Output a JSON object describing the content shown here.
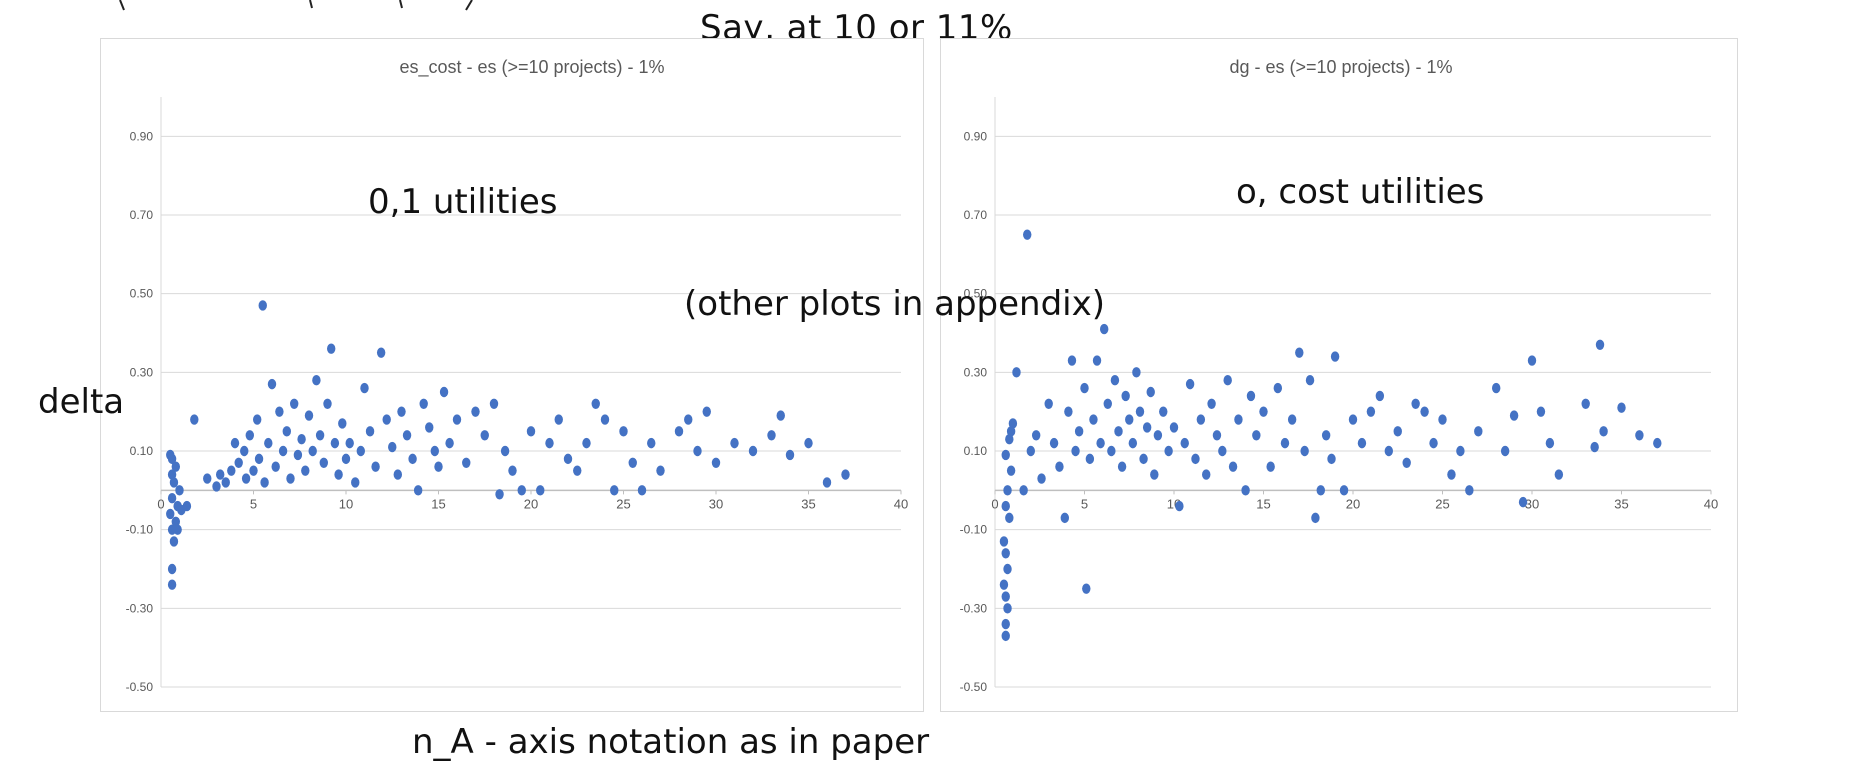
{
  "header_note": "Say, at 10 or 11%",
  "annotations": {
    "left_note": "0,1 utilities",
    "right_note": "o, cost utilities",
    "middle_note": "(other plots in appendix)",
    "y_note": "delta",
    "x_note": "n_A - axis notation as in paper"
  },
  "colors": {
    "marker": "#4472C4",
    "grid": "#d9d9d9",
    "axis_text": "#595959",
    "title_text": "#595959"
  },
  "chart_data": [
    {
      "type": "scatter",
      "title": "es_cost - es (>=10 projects) - 1%",
      "xlabel": "",
      "ylabel": "",
      "xlim": [
        0,
        40
      ],
      "ylim": [
        -0.5,
        1.0
      ],
      "x_ticks": [
        0,
        5,
        10,
        15,
        20,
        25,
        30,
        35,
        40
      ],
      "x_tick_labels": [
        "0",
        "5",
        "10",
        "15",
        "20",
        "25",
        "30",
        "35",
        "40"
      ],
      "y_ticks": [
        0.9,
        0.7,
        0.5,
        0.3,
        0.1,
        -0.1,
        -0.3,
        -0.5
      ],
      "y_tick_labels": [
        "0.90",
        "0.70",
        "0.50",
        "0.30",
        "0.10",
        "-0.10",
        "-0.30",
        "-0.50"
      ],
      "grid": "horizontal",
      "series": [
        {
          "color": "#4472C4",
          "points": [
            [
              0.6,
              -0.24
            ],
            [
              0.6,
              -0.2
            ],
            [
              0.7,
              -0.13
            ],
            [
              0.6,
              -0.1
            ],
            [
              0.8,
              -0.08
            ],
            [
              0.5,
              -0.06
            ],
            [
              0.9,
              -0.04
            ],
            [
              0.6,
              -0.02
            ],
            [
              1.0,
              0.0
            ],
            [
              0.7,
              0.02
            ],
            [
              0.6,
              0.04
            ],
            [
              0.8,
              0.06
            ],
            [
              0.6,
              0.08
            ],
            [
              0.9,
              -0.1
            ],
            [
              1.1,
              -0.05
            ],
            [
              0.5,
              0.09
            ],
            [
              1.4,
              -0.04
            ],
            [
              1.8,
              0.18
            ],
            [
              2.5,
              0.03
            ],
            [
              3.0,
              0.01
            ],
            [
              3.2,
              0.04
            ],
            [
              3.5,
              0.02
            ],
            [
              3.8,
              0.05
            ],
            [
              4.0,
              0.12
            ],
            [
              4.2,
              0.07
            ],
            [
              4.5,
              0.1
            ],
            [
              4.6,
              0.03
            ],
            [
              4.8,
              0.14
            ],
            [
              5.0,
              0.05
            ],
            [
              5.2,
              0.18
            ],
            [
              5.3,
              0.08
            ],
            [
              5.5,
              0.47
            ],
            [
              5.6,
              0.02
            ],
            [
              5.8,
              0.12
            ],
            [
              6.0,
              0.27
            ],
            [
              6.2,
              0.06
            ],
            [
              6.4,
              0.2
            ],
            [
              6.6,
              0.1
            ],
            [
              6.8,
              0.15
            ],
            [
              7.0,
              0.03
            ],
            [
              7.2,
              0.22
            ],
            [
              7.4,
              0.09
            ],
            [
              7.6,
              0.13
            ],
            [
              7.8,
              0.05
            ],
            [
              8.0,
              0.19
            ],
            [
              8.2,
              0.1
            ],
            [
              8.4,
              0.28
            ],
            [
              8.6,
              0.14
            ],
            [
              8.8,
              0.07
            ],
            [
              9.0,
              0.22
            ],
            [
              9.2,
              0.36
            ],
            [
              9.4,
              0.12
            ],
            [
              9.6,
              0.04
            ],
            [
              9.8,
              0.17
            ],
            [
              10.0,
              0.08
            ],
            [
              10.2,
              0.12
            ],
            [
              10.5,
              0.02
            ],
            [
              10.8,
              0.1
            ],
            [
              11.0,
              0.26
            ],
            [
              11.3,
              0.15
            ],
            [
              11.6,
              0.06
            ],
            [
              11.9,
              0.35
            ],
            [
              12.2,
              0.18
            ],
            [
              12.5,
              0.11
            ],
            [
              12.8,
              0.04
            ],
            [
              13.0,
              0.2
            ],
            [
              13.3,
              0.14
            ],
            [
              13.6,
              0.08
            ],
            [
              13.9,
              0.0
            ],
            [
              14.2,
              0.22
            ],
            [
              14.5,
              0.16
            ],
            [
              14.8,
              0.1
            ],
            [
              15.0,
              0.06
            ],
            [
              15.3,
              0.25
            ],
            [
              15.6,
              0.12
            ],
            [
              16.0,
              0.18
            ],
            [
              16.5,
              0.07
            ],
            [
              17.0,
              0.2
            ],
            [
              17.5,
              0.14
            ],
            [
              18.0,
              0.22
            ],
            [
              18.3,
              -0.01
            ],
            [
              18.6,
              0.1
            ],
            [
              19.0,
              0.05
            ],
            [
              19.5,
              0.0
            ],
            [
              20.0,
              0.15
            ],
            [
              20.5,
              0.0
            ],
            [
              21.0,
              0.12
            ],
            [
              21.5,
              0.18
            ],
            [
              22.0,
              0.08
            ],
            [
              22.5,
              0.05
            ],
            [
              23.0,
              0.12
            ],
            [
              23.5,
              0.22
            ],
            [
              24.0,
              0.18
            ],
            [
              24.5,
              0.0
            ],
            [
              25.0,
              0.15
            ],
            [
              25.5,
              0.07
            ],
            [
              26.0,
              0.0
            ],
            [
              26.5,
              0.12
            ],
            [
              27.0,
              0.05
            ],
            [
              28.0,
              0.15
            ],
            [
              28.5,
              0.18
            ],
            [
              29.0,
              0.1
            ],
            [
              29.5,
              0.2
            ],
            [
              30.0,
              0.07
            ],
            [
              31.0,
              0.12
            ],
            [
              32.0,
              0.1
            ],
            [
              33.0,
              0.14
            ],
            [
              33.5,
              0.19
            ],
            [
              34.0,
              0.09
            ],
            [
              35.0,
              0.12
            ],
            [
              36.0,
              0.02
            ],
            [
              37.0,
              0.04
            ]
          ]
        }
      ]
    },
    {
      "type": "scatter",
      "title": "dg - es (>=10 projects) - 1%",
      "xlabel": "",
      "ylabel": "",
      "xlim": [
        0,
        40
      ],
      "ylim": [
        -0.5,
        1.0
      ],
      "x_ticks": [
        0,
        5,
        10,
        15,
        20,
        25,
        30,
        35,
        40
      ],
      "x_tick_labels": [
        "0",
        "5",
        "10",
        "15",
        "20",
        "25",
        "30",
        "35",
        "40"
      ],
      "y_ticks": [
        0.9,
        0.7,
        0.5,
        0.3,
        0.1,
        -0.1,
        -0.3,
        -0.5
      ],
      "y_tick_labels": [
        "0.90",
        "0.70",
        "0.50",
        "0.30",
        "0.10",
        "-0.10",
        "-0.30",
        "-0.50"
      ],
      "grid": "horizontal",
      "series": [
        {
          "color": "#4472C4",
          "points": [
            [
              0.6,
              -0.37
            ],
            [
              0.6,
              -0.34
            ],
            [
              0.7,
              -0.3
            ],
            [
              0.6,
              -0.27
            ],
            [
              0.5,
              -0.24
            ],
            [
              0.7,
              -0.2
            ],
            [
              0.6,
              -0.16
            ],
            [
              0.5,
              -0.13
            ],
            [
              0.8,
              -0.07
            ],
            [
              0.6,
              -0.04
            ],
            [
              0.7,
              0.0
            ],
            [
              0.9,
              0.05
            ],
            [
              0.6,
              0.09
            ],
            [
              0.8,
              0.13
            ],
            [
              1.0,
              0.17
            ],
            [
              1.2,
              0.3
            ],
            [
              0.9,
              0.15
            ],
            [
              1.6,
              0.0
            ],
            [
              1.8,
              0.65
            ],
            [
              2.0,
              0.1
            ],
            [
              2.3,
              0.14
            ],
            [
              2.6,
              0.03
            ],
            [
              3.0,
              0.22
            ],
            [
              3.3,
              0.12
            ],
            [
              3.6,
              0.06
            ],
            [
              3.9,
              -0.07
            ],
            [
              4.1,
              0.2
            ],
            [
              4.3,
              0.33
            ],
            [
              4.5,
              0.1
            ],
            [
              4.7,
              0.15
            ],
            [
              5.0,
              0.26
            ],
            [
              5.1,
              -0.25
            ],
            [
              5.3,
              0.08
            ],
            [
              5.5,
              0.18
            ],
            [
              5.7,
              0.33
            ],
            [
              5.9,
              0.12
            ],
            [
              6.1,
              0.41
            ],
            [
              6.3,
              0.22
            ],
            [
              6.5,
              0.1
            ],
            [
              6.7,
              0.28
            ],
            [
              6.9,
              0.15
            ],
            [
              7.1,
              0.06
            ],
            [
              7.3,
              0.24
            ],
            [
              7.5,
              0.18
            ],
            [
              7.7,
              0.12
            ],
            [
              7.9,
              0.3
            ],
            [
              8.1,
              0.2
            ],
            [
              8.3,
              0.08
            ],
            [
              8.5,
              0.16
            ],
            [
              8.7,
              0.25
            ],
            [
              8.9,
              0.04
            ],
            [
              9.1,
              0.14
            ],
            [
              9.4,
              0.2
            ],
            [
              9.7,
              0.1
            ],
            [
              10.0,
              0.16
            ],
            [
              10.3,
              -0.04
            ],
            [
              10.6,
              0.12
            ],
            [
              10.9,
              0.27
            ],
            [
              11.2,
              0.08
            ],
            [
              11.5,
              0.18
            ],
            [
              11.8,
              0.04
            ],
            [
              12.1,
              0.22
            ],
            [
              12.4,
              0.14
            ],
            [
              12.7,
              0.1
            ],
            [
              13.0,
              0.28
            ],
            [
              13.3,
              0.06
            ],
            [
              13.6,
              0.18
            ],
            [
              14.0,
              0.0
            ],
            [
              14.3,
              0.24
            ],
            [
              14.6,
              0.14
            ],
            [
              15.0,
              0.2
            ],
            [
              15.4,
              0.06
            ],
            [
              15.8,
              0.26
            ],
            [
              16.2,
              0.12
            ],
            [
              16.6,
              0.18
            ],
            [
              17.0,
              0.35
            ],
            [
              17.3,
              0.1
            ],
            [
              17.6,
              0.28
            ],
            [
              17.9,
              -0.07
            ],
            [
              18.2,
              0.0
            ],
            [
              18.5,
              0.14
            ],
            [
              18.8,
              0.08
            ],
            [
              19.0,
              0.34
            ],
            [
              19.5,
              0.0
            ],
            [
              20.0,
              0.18
            ],
            [
              20.5,
              0.12
            ],
            [
              21.0,
              0.2
            ],
            [
              21.5,
              0.24
            ],
            [
              22.0,
              0.1
            ],
            [
              22.5,
              0.15
            ],
            [
              23.0,
              0.07
            ],
            [
              23.5,
              0.22
            ],
            [
              24.0,
              0.2
            ],
            [
              24.5,
              0.12
            ],
            [
              25.0,
              0.18
            ],
            [
              25.5,
              0.04
            ],
            [
              26.0,
              0.1
            ],
            [
              26.5,
              0.0
            ],
            [
              27.0,
              0.15
            ],
            [
              28.0,
              0.26
            ],
            [
              28.5,
              0.1
            ],
            [
              29.0,
              0.19
            ],
            [
              29.5,
              -0.03
            ],
            [
              30.0,
              0.33
            ],
            [
              30.5,
              0.2
            ],
            [
              31.0,
              0.12
            ],
            [
              31.5,
              0.04
            ],
            [
              33.0,
              0.22
            ],
            [
              33.5,
              0.11
            ],
            [
              33.8,
              0.37
            ],
            [
              34.0,
              0.15
            ],
            [
              35.0,
              0.21
            ],
            [
              36.0,
              0.14
            ],
            [
              37.0,
              0.12
            ]
          ]
        }
      ]
    }
  ]
}
